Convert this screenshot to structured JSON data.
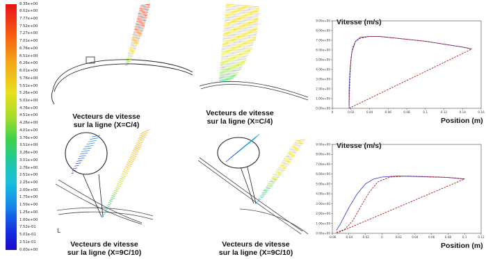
{
  "colorbar": {
    "labels": [
      "8.35e+00",
      "8.02e+00",
      "7.77e+00",
      "7.52e+00",
      "7.27e+00",
      "7.01e+00",
      "6.76e+00",
      "6.51e+00",
      "6.26e+00",
      "6.01e+00",
      "5.76e+00",
      "5.51e+00",
      "5.26e+00",
      "5.01e+00",
      "4.76e+00",
      "4.51e+00",
      "4.26e+00",
      "4.01e+00",
      "3.76e+00",
      "3.51e+00",
      "3.26e+00",
      "3.01e+00",
      "2.76e+00",
      "2.51e+00",
      "2.25e+00",
      "2.00e+00",
      "1.75e+00",
      "1.50e+00",
      "1.25e+00",
      "1.00e+00",
      "7.52e-01",
      "5.01e-01",
      "2.51e-01",
      "0.00e+00"
    ]
  },
  "captions": {
    "top_left": [
      "Vecteurs de vitesse",
      "sur la ligne (X=C/4)"
    ],
    "top_middle": [
      "Vecteurs de vitesse",
      "sur la ligne (X=C/4)"
    ],
    "bottom_left": [
      "Vecteurs de vitesse",
      "sur la ligne (X=9C/10)"
    ],
    "bottom_middle": [
      "Vecteurs de vitesse",
      "sur la ligne (X=9C/10)"
    ]
  },
  "axis_glyph": "L",
  "colors": {
    "series_blue": "#4444cc",
    "series_red": "#b01818"
  },
  "chart_data": [
    {
      "type": "line",
      "title": "Vitesse (m/s)",
      "xlabel": "Position (m)",
      "ylabel": "",
      "xlim": [
        0,
        0.16
      ],
      "ylim": [
        0,
        9
      ],
      "x_ticks": [
        "0",
        "0.02",
        "0.04",
        "0.06",
        "0.08",
        "0.1",
        "0.12",
        "0.14",
        "0.16"
      ],
      "y_ticks": [
        "0.00e+00",
        "1.00e+00",
        "2.00e+00",
        "3.00e+00",
        "4.00e+00",
        "5.00e+00",
        "6.00e+00",
        "7.00e+00",
        "8.00e+00",
        "9.00e+00"
      ],
      "series": [
        {
          "color": "#4444cc",
          "style": "solid",
          "x": [
            0.018,
            0.018,
            0.019,
            0.021,
            0.025,
            0.03,
            0.04,
            0.05,
            0.06,
            0.08,
            0.1,
            0.12,
            0.14,
            0.15
          ],
          "y": [
            0.0,
            2.0,
            4.0,
            5.8,
            6.9,
            7.3,
            7.4,
            7.4,
            7.3,
            7.1,
            6.9,
            6.6,
            6.3,
            6.1
          ]
        },
        {
          "color": "#b01818",
          "style": "dashed",
          "x": [
            0.018,
            0.019,
            0.02,
            0.022,
            0.025,
            0.03,
            0.04,
            0.05,
            0.06,
            0.08,
            0.1,
            0.12,
            0.14,
            0.15
          ],
          "y": [
            0.3,
            3.2,
            5.2,
            6.3,
            6.9,
            7.2,
            7.4,
            7.4,
            7.3,
            7.1,
            6.9,
            6.6,
            6.3,
            6.1
          ]
        },
        {
          "color": "#b01818",
          "style": "dashed",
          "x": [
            0.018,
            0.15
          ],
          "y": [
            0.0,
            6.1
          ]
        }
      ]
    },
    {
      "type": "line",
      "title": "Vitesse (m/s)",
      "xlabel": "Position (m)",
      "ylabel": "",
      "xlim": [
        -0.06,
        0.12
      ],
      "ylim": [
        0,
        9
      ],
      "x_ticks": [
        "-0.06",
        "-0.04",
        "-0.02",
        "0",
        "0.02",
        "0.04",
        "0.06",
        "0.08",
        "0.1",
        "0.12"
      ],
      "y_ticks": [
        "0.00e+00",
        "1.00e+00",
        "2.00e+00",
        "3.00e+00",
        "4.00e+00",
        "5.00e+00",
        "6.00e+00",
        "7.00e+00",
        "8.00e+00",
        "9.00e+00"
      ],
      "series": [
        {
          "color": "#4444cc",
          "style": "solid",
          "x": [
            -0.055,
            -0.05,
            -0.04,
            -0.03,
            -0.02,
            -0.01,
            0.0,
            0.02,
            0.04,
            0.06,
            0.08,
            0.1
          ],
          "y": [
            0.3,
            1.0,
            2.6,
            4.0,
            5.0,
            5.5,
            5.7,
            5.8,
            5.75,
            5.7,
            5.65,
            5.5
          ]
        },
        {
          "color": "#b01818",
          "style": "dashed",
          "x": [
            -0.055,
            -0.045,
            -0.035,
            -0.025,
            -0.015,
            -0.005,
            0.01,
            0.03,
            0.05,
            0.07,
            0.09,
            0.1
          ],
          "y": [
            0.1,
            0.4,
            1.3,
            2.8,
            4.2,
            5.2,
            5.7,
            5.8,
            5.75,
            5.7,
            5.6,
            5.5
          ]
        },
        {
          "color": "#b01818",
          "style": "dashed",
          "x": [
            -0.055,
            0.1
          ],
          "y": [
            0.0,
            5.5
          ]
        }
      ]
    }
  ]
}
